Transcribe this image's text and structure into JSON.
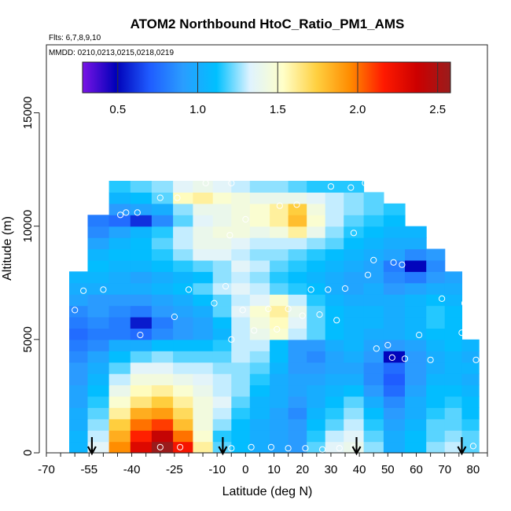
{
  "chart_data": {
    "type": "heatmap",
    "title": "ATOM2 Northbound HtoC_Ratio_PM1_AMS",
    "notes": {
      "flights": "Flts: 6,7,8,9,10",
      "dates": "MMDD: 0210,0213,0215,0218,0219"
    },
    "xlabel": "Latitude (deg N)",
    "ylabel": "Altitude (m)",
    "xlim": [
      -70,
      85
    ],
    "ylim": [
      0,
      18000
    ],
    "x_ticks": [
      -70,
      -55,
      -40,
      -25,
      -10,
      0,
      10,
      20,
      30,
      40,
      50,
      60,
      70,
      80
    ],
    "y_ticks": [
      0,
      5000,
      10000,
      15000
    ],
    "colorbar": {
      "range": [
        0.28,
        2.58
      ],
      "ticks": [
        0.5,
        1.0,
        1.5,
        2.0,
        2.5
      ],
      "tick_labels": [
        "0.5",
        "1.0",
        "1.5",
        "2.0",
        "2.5"
      ],
      "colors": [
        "#7a14e6",
        "#0000b8",
        "#1f5cff",
        "#2a9dff",
        "#00c0ff",
        "#dff3ff",
        "#ffffc8",
        "#ffd040",
        "#ff8c00",
        "#ff1a00",
        "#cc0000",
        "#9a1c1c"
      ]
    },
    "markers_latitude": [
      -54,
      -8,
      39,
      76
    ],
    "profile_latitudes": [
      -59,
      -52,
      -44,
      -37,
      -29,
      -22,
      -15,
      -8,
      -2,
      5,
      12,
      18,
      25,
      31,
      38,
      45,
      52,
      60,
      67,
      73,
      79
    ],
    "altitude_levels": [
      250,
      750,
      1250,
      1750,
      2250,
      2750,
      3250,
      3750,
      4250,
      4750,
      5250,
      5750,
      6250,
      6750,
      7250,
      7750,
      8250,
      8750,
      9250,
      9750,
      10250,
      10750,
      11250,
      11750
    ],
    "profile_top_altitude": [
      8000,
      10500,
      12000,
      12000,
      12000,
      12000,
      12000,
      12000,
      12000,
      12000,
      12000,
      12000,
      12000,
      12000,
      12000,
      11500,
      11000,
      10000,
      9000,
      8000,
      5000
    ],
    "values": [
      [
        1.05,
        1.35,
        1.95,
        2.3,
        2.6,
        2.2,
        1.6,
        1.2,
        1.1,
        1.0,
        0.95,
        0.9,
        1.2,
        1.35,
        1.4,
        1.25,
        1.0,
        1.1,
        1.25,
        1.3,
        1.2
      ],
      [
        1.05,
        1.3,
        1.85,
        2.15,
        2.4,
        2.0,
        1.5,
        1.15,
        1.1,
        1.0,
        0.95,
        0.9,
        1.15,
        1.3,
        1.35,
        1.2,
        1.0,
        1.1,
        1.2,
        1.25,
        1.2
      ],
      [
        1.0,
        1.25,
        1.75,
        2.0,
        2.1,
        1.8,
        1.45,
        1.25,
        1.1,
        1.0,
        0.95,
        0.9,
        1.1,
        1.2,
        1.3,
        1.15,
        0.95,
        1.05,
        1.2,
        1.2,
        1.15
      ],
      [
        1.0,
        1.2,
        1.6,
        1.85,
        1.9,
        1.7,
        1.45,
        1.3,
        1.15,
        1.05,
        0.95,
        0.85,
        1.05,
        1.15,
        1.25,
        1.1,
        0.9,
        1.0,
        1.15,
        1.2,
        1.1
      ],
      [
        0.95,
        1.15,
        1.5,
        1.65,
        1.75,
        1.6,
        1.45,
        1.35,
        1.2,
        1.05,
        1.0,
        0.9,
        1.0,
        1.1,
        1.2,
        1.0,
        0.85,
        1.0,
        1.1,
        1.15,
        1.1
      ],
      [
        0.95,
        1.1,
        1.4,
        1.55,
        1.6,
        1.5,
        1.4,
        1.3,
        1.25,
        1.1,
        1.0,
        0.95,
        1.0,
        1.05,
        1.1,
        0.9,
        0.75,
        0.95,
        1.1,
        1.1,
        1.05
      ],
      [
        0.9,
        1.05,
        1.3,
        1.45,
        1.45,
        1.4,
        1.35,
        1.3,
        1.25,
        1.15,
        1.0,
        0.95,
        0.95,
        1.0,
        1.0,
        0.85,
        0.7,
        0.9,
        1.05,
        1.05,
        1.0
      ],
      [
        0.9,
        1.0,
        1.2,
        1.35,
        1.35,
        1.3,
        1.3,
        1.25,
        1.25,
        1.2,
        1.05,
        0.9,
        0.9,
        0.95,
        0.95,
        0.85,
        0.75,
        0.9,
        1.0,
        1.05,
        1.05
      ],
      [
        0.85,
        0.95,
        1.1,
        1.2,
        1.25,
        1.2,
        1.2,
        1.2,
        1.3,
        1.25,
        1.1,
        0.9,
        0.85,
        0.95,
        1.0,
        0.9,
        0.5,
        0.9,
        1.0,
        1.05,
        1.0
      ],
      [
        0.8,
        0.85,
        1.0,
        1.0,
        1.1,
        1.1,
        1.1,
        1.15,
        1.3,
        1.3,
        1.1,
        0.9,
        0.9,
        1.0,
        1.05,
        0.95,
        0.9,
        0.95,
        1.05,
        1.1,
        1.05
      ],
      [
        0.75,
        0.8,
        0.8,
        0.75,
        0.85,
        0.9,
        0.95,
        1.05,
        1.3,
        1.4,
        1.5,
        1.3,
        1.2,
        1.1,
        1.05,
        1.0,
        1.0,
        1.05,
        1.1,
        1.1,
        1.05
      ],
      [
        0.8,
        0.85,
        0.8,
        0.55,
        0.8,
        0.9,
        0.95,
        1.1,
        1.3,
        1.45,
        1.55,
        1.35,
        1.2,
        1.1,
        1.05,
        1.05,
        1.0,
        1.05,
        1.15,
        1.1,
        1.05
      ],
      [
        0.85,
        0.9,
        0.85,
        0.8,
        0.9,
        0.95,
        1.0,
        1.2,
        1.35,
        1.5,
        1.6,
        1.4,
        1.2,
        1.1,
        1.05,
        1.05,
        1.0,
        1.05,
        1.15,
        1.1,
        1.05
      ],
      [
        0.95,
        0.9,
        0.9,
        0.9,
        0.95,
        1.0,
        1.1,
        1.2,
        1.3,
        1.35,
        1.5,
        1.3,
        1.15,
        1.05,
        1.0,
        1.0,
        1.0,
        1.05,
        1.1,
        1.05,
        1.0
      ],
      [
        1.0,
        1.0,
        1.0,
        1.0,
        1.05,
        1.1,
        1.2,
        1.3,
        1.35,
        1.3,
        1.2,
        1.15,
        1.1,
        1.0,
        0.95,
        1.0,
        0.9,
        0.95,
        1.0,
        1.0,
        1.0
      ],
      [
        1.05,
        1.05,
        1.0,
        0.95,
        1.0,
        1.05,
        1.1,
        1.25,
        1.3,
        1.25,
        1.15,
        1.1,
        1.05,
        1.0,
        0.95,
        0.95,
        0.85,
        0.8,
        0.9,
        0.95,
        1.0
      ],
      [
        1.1,
        1.1,
        1.05,
        1.05,
        1.1,
        1.15,
        1.2,
        1.25,
        1.35,
        1.3,
        1.2,
        1.15,
        1.1,
        1.05,
        1.0,
        0.95,
        0.8,
        0.5,
        0.85,
        0.95,
        1.0
      ],
      [
        1.0,
        1.05,
        1.1,
        1.1,
        1.15,
        1.25,
        1.35,
        1.35,
        1.3,
        1.25,
        1.25,
        1.2,
        1.15,
        1.1,
        1.05,
        1.0,
        0.95,
        0.85,
        0.9,
        1.0,
        1.0
      ],
      [
        0.9,
        0.95,
        1.05,
        1.1,
        1.2,
        1.3,
        1.4,
        1.4,
        1.35,
        1.3,
        1.3,
        1.3,
        1.25,
        1.2,
        1.1,
        1.05,
        1.0,
        1.0,
        1.05,
        1.05,
        1.0
      ],
      [
        0.8,
        0.85,
        0.95,
        1.05,
        1.15,
        1.3,
        1.4,
        1.45,
        1.45,
        1.4,
        1.45,
        1.6,
        1.4,
        1.25,
        1.15,
        1.1,
        1.05,
        1.05,
        1.1,
        1.1,
        1.0
      ],
      [
        0.75,
        0.8,
        0.75,
        0.6,
        0.85,
        1.2,
        1.35,
        1.4,
        1.45,
        1.5,
        1.6,
        1.8,
        1.5,
        1.3,
        1.2,
        1.15,
        1.1,
        1.1,
        1.1,
        1.1,
        1.0
      ],
      [
        0.8,
        0.85,
        0.9,
        0.95,
        1.0,
        1.25,
        1.4,
        1.4,
        1.45,
        1.5,
        1.6,
        1.75,
        1.45,
        1.3,
        1.25,
        1.2,
        1.15,
        1.1,
        1.1,
        1.1,
        1.0
      ],
      [
        0.9,
        0.95,
        1.05,
        1.1,
        1.2,
        1.55,
        1.6,
        1.5,
        1.45,
        1.4,
        1.4,
        1.4,
        1.35,
        1.3,
        1.25,
        1.2,
        1.15,
        1.1,
        1.1,
        1.1,
        1.0
      ],
      [
        1.0,
        1.05,
        1.15,
        1.2,
        1.25,
        1.35,
        1.4,
        1.35,
        1.3,
        1.25,
        1.25,
        1.2,
        1.15,
        1.15,
        1.15,
        1.15,
        1.1,
        1.1,
        1.1,
        1.1,
        1.0
      ]
    ],
    "sample_points": [
      {
        "lat": -55.5,
        "alt": 11800
      },
      {
        "lat": -58,
        "alt": 10600
      },
      {
        "lat": -60,
        "alt": 10050
      },
      {
        "lat": -44,
        "alt": 10500
      },
      {
        "lat": -42,
        "alt": 10600
      },
      {
        "lat": -38,
        "alt": 10600
      },
      {
        "lat": -30,
        "alt": 11250
      },
      {
        "lat": -24,
        "alt": 11250
      },
      {
        "lat": -14,
        "alt": 11900
      },
      {
        "lat": -5,
        "alt": 11900
      },
      {
        "lat": 0,
        "alt": 10300
      },
      {
        "lat": -5.5,
        "alt": 9600
      },
      {
        "lat": 12,
        "alt": 10900
      },
      {
        "lat": 18,
        "alt": 10950
      },
      {
        "lat": 30,
        "alt": 11750
      },
      {
        "lat": 37,
        "alt": 11700
      },
      {
        "lat": 42,
        "alt": 11900
      },
      {
        "lat": 38,
        "alt": 9700
      },
      {
        "lat": 45,
        "alt": 8500
      },
      {
        "lat": 52,
        "alt": 8400
      },
      {
        "lat": 55,
        "alt": 8300
      },
      {
        "lat": 43,
        "alt": 7850
      },
      {
        "lat": 73,
        "alt": 9450
      },
      {
        "lat": 80,
        "alt": 8550
      },
      {
        "lat": -57,
        "alt": 7150
      },
      {
        "lat": -50,
        "alt": 7200
      },
      {
        "lat": -20,
        "alt": 7200
      },
      {
        "lat": -11,
        "alt": 6600
      },
      {
        "lat": -7,
        "alt": 7350
      },
      {
        "lat": 23,
        "alt": 7200
      },
      {
        "lat": 29,
        "alt": 7200
      },
      {
        "lat": 35,
        "alt": 7250
      },
      {
        "lat": 69,
        "alt": 6800
      },
      {
        "lat": 77,
        "alt": 6600
      },
      {
        "lat": -60,
        "alt": 6300
      },
      {
        "lat": -25,
        "alt": 6000
      },
      {
        "lat": -1,
        "alt": 6300
      },
      {
        "lat": 8,
        "alt": 6350
      },
      {
        "lat": 15,
        "alt": 6350
      },
      {
        "lat": 20,
        "alt": 6050
      },
      {
        "lat": 26,
        "alt": 6100
      },
      {
        "lat": 32,
        "alt": 5850
      },
      {
        "lat": -37,
        "alt": 5200
      },
      {
        "lat": -5,
        "alt": 5000
      },
      {
        "lat": 3,
        "alt": 5400
      },
      {
        "lat": 11,
        "alt": 5450
      },
      {
        "lat": 46,
        "alt": 4600
      },
      {
        "lat": 50,
        "alt": 4750
      },
      {
        "lat": 51.5,
        "alt": 4200
      },
      {
        "lat": 56,
        "alt": 4150
      },
      {
        "lat": 61,
        "alt": 5200
      },
      {
        "lat": 65,
        "alt": 4100
      },
      {
        "lat": 76,
        "alt": 5300
      },
      {
        "lat": 81,
        "alt": 4100
      },
      {
        "lat": -30,
        "alt": 250
      },
      {
        "lat": -23,
        "alt": 250
      },
      {
        "lat": -5,
        "alt": 200
      },
      {
        "lat": 2,
        "alt": 250
      },
      {
        "lat": 9,
        "alt": 250
      },
      {
        "lat": 15,
        "alt": 200
      },
      {
        "lat": 21,
        "alt": 200
      },
      {
        "lat": 27,
        "alt": 150
      },
      {
        "lat": 33,
        "alt": 200
      },
      {
        "lat": 38,
        "alt": 250
      },
      {
        "lat": 80,
        "alt": 300
      }
    ]
  }
}
